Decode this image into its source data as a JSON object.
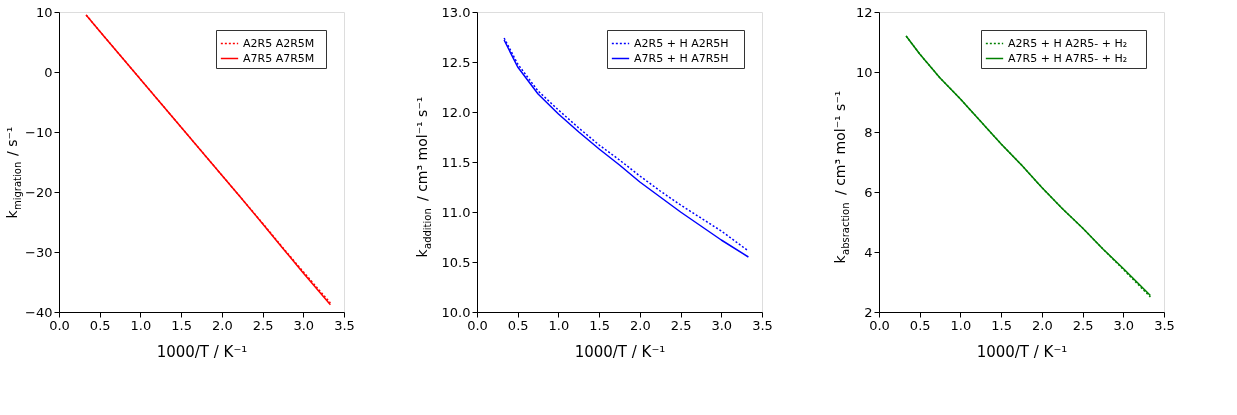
{
  "chart_data": [
    {
      "type": "line",
      "xlabel": "1000/T / K⁻¹",
      "ylabel": "k$_{migration}$ / s⁻¹",
      "x": [
        0.333,
        0.5,
        0.75,
        1.0,
        1.25,
        1.5,
        1.75,
        2.0,
        2.25,
        2.5,
        2.75,
        3.0,
        3.333
      ],
      "xlim": [
        0.0,
        3.5
      ],
      "xticks": [
        {
          "value": 0,
          "label": "0.0"
        },
        0.5,
        {
          "value": 1,
          "label": "1.0"
        },
        1.5,
        {
          "value": 2,
          "label": "2.0"
        },
        2.5,
        {
          "value": 3,
          "label": "3.0"
        },
        3.5
      ],
      "ylim": [
        -40,
        10
      ],
      "yticks": [
        -40,
        -30,
        -20,
        -10,
        0,
        10
      ],
      "grid": false,
      "legend": "top right",
      "marker": "none",
      "series": [
        {
          "name": "A2R5   A2R5M",
          "color": "#ff0000",
          "line_style": "dotted",
          "values": [
            9.5,
            6.8,
            2.8,
            -1.2,
            -5.2,
            -9.2,
            -13.2,
            -17.2,
            -21.2,
            -25.2,
            -29.3,
            -33.3,
            -38.5
          ]
        },
        {
          "name": "A7R5   A7R5M",
          "color": "#ff0000",
          "line_style": "solid",
          "values": [
            9.5,
            6.8,
            2.8,
            -1.2,
            -5.2,
            -9.2,
            -13.2,
            -17.2,
            -21.2,
            -25.3,
            -29.4,
            -33.5,
            -38.8
          ]
        }
      ]
    },
    {
      "type": "line",
      "xlabel": "1000/T / K⁻¹",
      "ylabel": "k$_{addition}$ / cm³ mol⁻¹ s⁻¹",
      "x": [
        0.333,
        0.5,
        0.75,
        1.0,
        1.25,
        1.5,
        1.75,
        2.0,
        2.25,
        2.5,
        2.75,
        3.0,
        3.333
      ],
      "xlim": [
        0.0,
        3.5
      ],
      "xticks": [
        {
          "value": 0,
          "label": "0.0"
        },
        0.5,
        {
          "value": 1,
          "label": "1.0"
        },
        1.5,
        {
          "value": 2,
          "label": "2.0"
        },
        2.5,
        {
          "value": 3,
          "label": "3.0"
        },
        3.5
      ],
      "ylim": [
        10.0,
        13.0
      ],
      "yticks": [
        {
          "value": 10,
          "label": "10.0"
        },
        10.5,
        {
          "value": 11,
          "label": "11.0"
        },
        11.5,
        {
          "value": 12,
          "label": "12.0"
        },
        12.5,
        {
          "value": 13,
          "label": "13.0"
        }
      ],
      "grid": false,
      "legend": "top right",
      "marker": "none",
      "series": [
        {
          "name": "A2R5 +  H   A2R5H",
          "color": "#0000ff",
          "line_style": "dotted",
          "values": [
            12.74,
            12.48,
            12.21,
            12.02,
            11.84,
            11.67,
            11.52,
            11.36,
            11.21,
            11.07,
            10.94,
            10.81,
            10.61
          ]
        },
        {
          "name": "A7R5 +  H   A7R5H",
          "color": "#0000ff",
          "line_style": "solid",
          "values": [
            12.72,
            12.45,
            12.18,
            11.98,
            11.8,
            11.63,
            11.47,
            11.3,
            11.15,
            11.0,
            10.86,
            10.72,
            10.55
          ]
        }
      ]
    },
    {
      "type": "line",
      "xlabel": "1000/T / K⁻¹",
      "ylabel": "k$_{absraction}$ / cm³ mol⁻¹ s⁻¹",
      "x": [
        0.333,
        0.5,
        0.75,
        1.0,
        1.25,
        1.5,
        1.75,
        2.0,
        2.25,
        2.5,
        2.75,
        3.0,
        3.333
      ],
      "xlim": [
        0.0,
        3.5
      ],
      "xticks": [
        {
          "value": 0,
          "label": "0.0"
        },
        0.5,
        {
          "value": 1,
          "label": "1.0"
        },
        1.5,
        {
          "value": 2,
          "label": "2.0"
        },
        2.5,
        {
          "value": 3,
          "label": "3.0"
        },
        3.5
      ],
      "ylim": [
        2,
        12
      ],
      "yticks": [
        2,
        4,
        6,
        8,
        10,
        12
      ],
      "grid": false,
      "legend": "top right",
      "marker": "none",
      "series": [
        {
          "name": "A2R5 +  H   A2R5-  + H₂",
          "color": "#008000",
          "line_style": "dotted",
          "values": [
            11.2,
            10.6,
            9.8,
            9.1,
            8.35,
            7.6,
            6.9,
            6.15,
            5.45,
            4.8,
            4.1,
            3.42,
            2.5
          ]
        },
        {
          "name": "A7R5 + H    A7R5- + H₂",
          "color": "#008000",
          "line_style": "solid",
          "values": [
            11.2,
            10.6,
            9.8,
            9.1,
            8.35,
            7.6,
            6.9,
            6.15,
            5.45,
            4.8,
            4.1,
            3.45,
            2.55
          ]
        }
      ]
    }
  ]
}
